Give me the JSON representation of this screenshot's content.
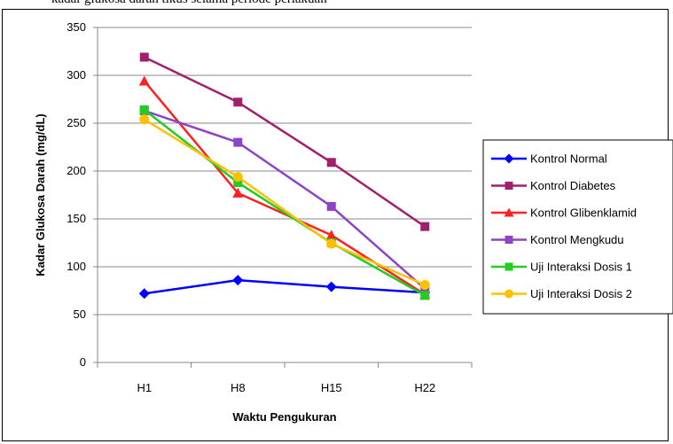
{
  "caption_fragment": "kadar glukosa darah tikus selama periode perlakuan",
  "chart_data": {
    "type": "line",
    "title": "",
    "xlabel": "Waktu Pengukuran",
    "ylabel": "Kadar Glukosa Darah (mg/dL)",
    "categories": [
      "H1",
      "H8",
      "H15",
      "H22"
    ],
    "ylim": [
      0,
      350
    ],
    "yticks": [
      0,
      50,
      100,
      150,
      200,
      250,
      300,
      350
    ],
    "grid": true,
    "legend_position": "right",
    "series": [
      {
        "name": "Kontrol Normal",
        "color": "#0000ff",
        "marker": "diamond",
        "values": [
          72,
          86,
          79,
          73
        ]
      },
      {
        "name": "Kontrol Diabetes",
        "color": "#a0206e",
        "marker": "square",
        "values": [
          319,
          272,
          209,
          142
        ]
      },
      {
        "name": "Kontrol Glibenklamid",
        "color": "#ff2020",
        "marker": "triangle",
        "values": [
          294,
          177,
          133,
          71
        ]
      },
      {
        "name": "Kontrol Mengkudu",
        "color": "#8e44c4",
        "marker": "square",
        "values": [
          263,
          230,
          163,
          77
        ]
      },
      {
        "name": "Uji Interaksi Dosis 1",
        "color": "#22cc22",
        "marker": "square",
        "values": [
          264,
          188,
          125,
          70
        ]
      },
      {
        "name": "Uji Interaksi Dosis 2",
        "color": "#ffc000",
        "marker": "circle",
        "values": [
          254,
          194,
          124,
          81
        ]
      }
    ]
  }
}
